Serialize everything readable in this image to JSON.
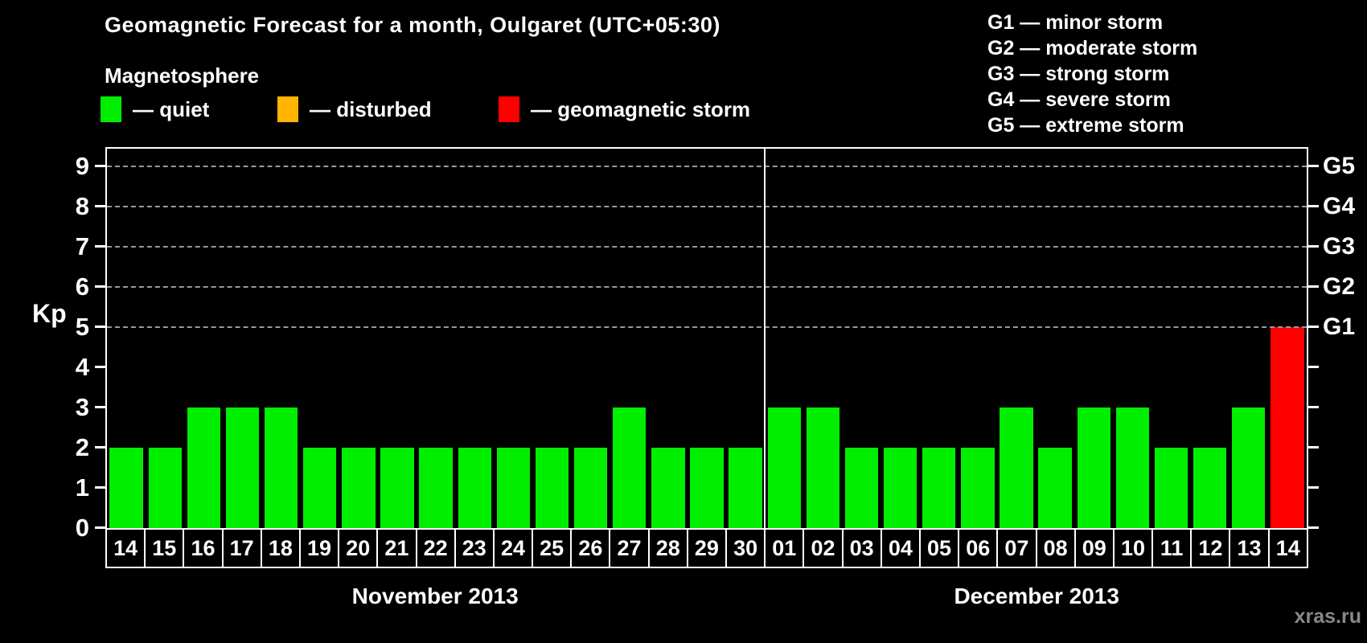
{
  "title": "Geomagnetic Forecast for a month, Oulgaret (UTC+05:30)",
  "subtitle": "Magnetosphere",
  "legend": {
    "items": [
      {
        "key": "quiet",
        "label": "— quiet",
        "color": "#00ee00"
      },
      {
        "key": "disturbed",
        "label": "— disturbed",
        "color": "#ffb400"
      },
      {
        "key": "storm",
        "label": "— geomagnetic storm",
        "color": "#ff0000"
      }
    ]
  },
  "storm_scale": [
    {
      "code": "G1",
      "label": "minor storm"
    },
    {
      "code": "G2",
      "label": "moderate storm"
    },
    {
      "code": "G3",
      "label": "strong storm"
    },
    {
      "code": "G4",
      "label": "severe storm"
    },
    {
      "code": "G5",
      "label": "extreme storm"
    }
  ],
  "watermark": "xras.ru",
  "chart_data": {
    "type": "bar",
    "title": "Geomagnetic Forecast for a month, Oulgaret (UTC+05:30)",
    "ylabel": "Kp",
    "ylim": [
      0,
      9.4
    ],
    "yticks": [
      0,
      1,
      2,
      3,
      4,
      5,
      6,
      7,
      8,
      9
    ],
    "gridlines": [
      5,
      6,
      7,
      8,
      9
    ],
    "grid_style": "dashed",
    "legend_position": "top",
    "right_axis": [
      {
        "value": 5,
        "label": "G1"
      },
      {
        "value": 6,
        "label": "G2"
      },
      {
        "value": 7,
        "label": "G3"
      },
      {
        "value": 8,
        "label": "G4"
      },
      {
        "value": 9,
        "label": "G5"
      }
    ],
    "months": [
      {
        "label": "November 2013",
        "days": 17
      },
      {
        "label": "December 2013",
        "days": 14
      }
    ],
    "categories": [
      "14",
      "15",
      "16",
      "17",
      "18",
      "19",
      "20",
      "21",
      "22",
      "23",
      "24",
      "25",
      "26",
      "27",
      "28",
      "29",
      "30",
      "01",
      "02",
      "03",
      "04",
      "05",
      "06",
      "07",
      "08",
      "09",
      "10",
      "11",
      "12",
      "13",
      "14"
    ],
    "values": [
      2,
      2,
      3,
      3,
      3,
      2,
      2,
      2,
      2,
      2,
      2,
      2,
      2,
      3,
      2,
      2,
      2,
      3,
      3,
      2,
      2,
      2,
      2,
      3,
      2,
      3,
      3,
      2,
      2,
      3,
      5
    ],
    "statuses": [
      "quiet",
      "quiet",
      "quiet",
      "quiet",
      "quiet",
      "quiet",
      "quiet",
      "quiet",
      "quiet",
      "quiet",
      "quiet",
      "quiet",
      "quiet",
      "quiet",
      "quiet",
      "quiet",
      "quiet",
      "quiet",
      "quiet",
      "quiet",
      "quiet",
      "quiet",
      "quiet",
      "quiet",
      "quiet",
      "quiet",
      "quiet",
      "quiet",
      "quiet",
      "quiet",
      "storm"
    ],
    "colors": {
      "quiet": "#00ee00",
      "disturbed": "#ffb400",
      "storm": "#ff0000"
    }
  }
}
